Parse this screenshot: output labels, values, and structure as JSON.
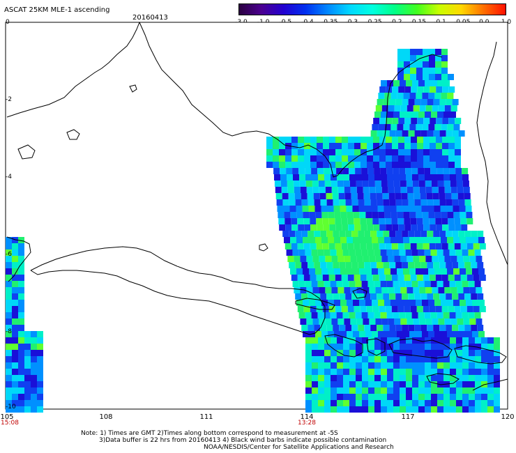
{
  "header": {
    "title": "ASCAT 25KM MLE-1 ascending",
    "date": "20160413"
  },
  "colorbar": {
    "labels": [
      "-3.0",
      "-1.0",
      "-0.5",
      "-0.4",
      "-0.35",
      "-0.3",
      "-0.25",
      "-0.2",
      "-0.15",
      "-0.1",
      "-0.05",
      "0.0",
      "1.0"
    ],
    "colors": [
      "#2a0040",
      "#4b0090",
      "#2200d0",
      "#0030f0",
      "#0088ff",
      "#00d8ff",
      "#00ffe0",
      "#00ff88",
      "#40ff20",
      "#c8ff00",
      "#ffd800",
      "#ff7000",
      "#ff1000"
    ]
  },
  "axes": {
    "y_labels": [
      "0",
      "-2",
      "-4",
      "-6",
      "-8",
      "-10"
    ],
    "x_labels": [
      "105",
      "108",
      "111",
      "114",
      "117",
      "120"
    ]
  },
  "times": [
    "15:08",
    "13:28"
  ],
  "notes": {
    "line1": "Note: 1) Times are GMT 2)Times along bottom correspond to measurement at -5S",
    "line2": "3)Data buffer is 22 hrs from 20160413 4) Black wind barbs indicate possible contamination",
    "line3": "NOAA/NESDIS/Center for Satellite Applications and Research"
  }
}
